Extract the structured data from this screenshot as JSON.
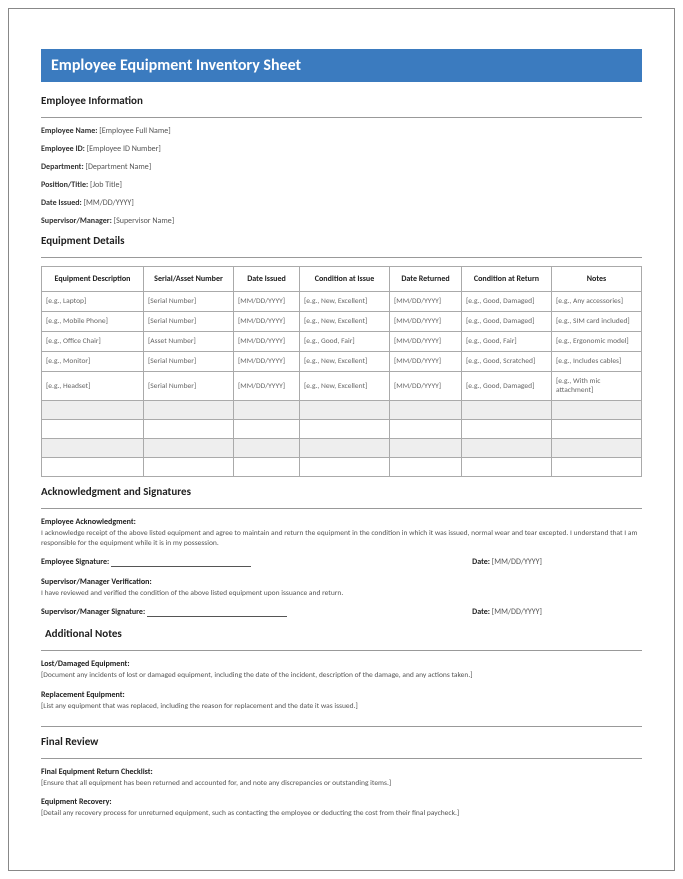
{
  "colors": {
    "banner_bg": "#3b7bbf",
    "banner_text": "#ffffff",
    "text": "#333333",
    "muted": "#666666",
    "border": "#aaaaaa",
    "zebra": "#eeeeee"
  },
  "title": "Employee Equipment Inventory Sheet",
  "sections": {
    "employee_info": {
      "heading": "Employee Information",
      "fields": [
        {
          "label": "Employee Name:",
          "value": "[Employee Full Name]"
        },
        {
          "label": "Employee ID:",
          "value": "[Employee ID Number]"
        },
        {
          "label": "Department:",
          "value": "[Department Name]"
        },
        {
          "label": "Position/Title:",
          "value": "[Job Title]"
        },
        {
          "label": "Date Issued:",
          "value": "[MM/DD/YYYY]"
        },
        {
          "label": "Supervisor/Manager:",
          "value": "[Supervisor Name]"
        }
      ]
    },
    "equipment": {
      "heading": "Equipment Details",
      "columns": [
        "Equipment Description",
        "Serial/Asset Number",
        "Date Issued",
        "Condition at Issue",
        "Date Returned",
        "Condition at Return",
        "Notes"
      ],
      "col_widths": [
        "17%",
        "15%",
        "11%",
        "15%",
        "12%",
        "15%",
        "15%"
      ],
      "rows": [
        [
          "[e.g., Laptop]",
          "[Serial Number]",
          "[MM/DD/YYYY]",
          "[e.g., New, Excellent]",
          "[MM/DD/YYYY]",
          "[e.g., Good, Damaged]",
          "[e.g., Any accessories]"
        ],
        [
          "[e.g., Mobile Phone]",
          "[Serial Number]",
          "[MM/DD/YYYY]",
          "[e.g., New, Excellent]",
          "[MM/DD/YYYY]",
          "[e.g., Good, Damaged]",
          "[e.g., SIM card included]"
        ],
        [
          "[e.g., Office Chair]",
          "[Asset Number]",
          "[MM/DD/YYYY]",
          "[e.g., Good, Fair]",
          "[MM/DD/YYYY]",
          "[e.g., Good, Fair]",
          "[e.g., Ergonomic model]"
        ],
        [
          "[e.g., Monitor]",
          "[Serial Number]",
          "[MM/DD/YYYY]",
          "[e.g., New, Excellent]",
          "[MM/DD/YYYY]",
          "[e.g., Good, Scratched]",
          "[e.g., Includes cables]"
        ],
        [
          "[e.g., Headset]",
          "[Serial Number]",
          "[MM/DD/YYYY]",
          "[e.g., New, Excellent]",
          "[MM/DD/YYYY]",
          "[e.g., Good, Damaged]",
          "[e.g., With mic attachment]"
        ],
        [
          "",
          "",
          "",
          "",
          "",
          "",
          ""
        ],
        [
          "",
          "",
          "",
          "",
          "",
          "",
          ""
        ],
        [
          "",
          "",
          "",
          "",
          "",
          "",
          ""
        ],
        [
          "",
          "",
          "",
          "",
          "",
          "",
          ""
        ]
      ],
      "zebra_rows": [
        6,
        8
      ]
    },
    "ack": {
      "heading": "Acknowledgment and Signatures",
      "emp_ack_label": "Employee Acknowledgment:",
      "emp_ack_text": "I acknowledge receipt of the above listed equipment and agree to maintain and return the equipment in the condition in which it was issued, normal wear and tear excepted. I understand that I am responsible for the equipment while it is in my possession.",
      "emp_sig_label": "Employee Signature:",
      "date_label": "Date:",
      "date_value": "[MM/DD/YYYY]",
      "sup_ver_label": "Supervisor/Manager Verification:",
      "sup_ver_text": "I have reviewed and verified the condition of the above listed equipment upon issuance and return.",
      "sup_sig_label": "Supervisor/Manager Signature:"
    },
    "notes": {
      "heading": "Additional Notes",
      "lost_label": "Lost/Damaged Equipment:",
      "lost_text": "[Document any incidents of lost or damaged equipment, including the date of the incident, description of the damage, and any actions taken.]",
      "replace_label": "Replacement Equipment:",
      "replace_text": "[List any equipment that was replaced, including the reason for replacement and the date it was issued.]"
    },
    "review": {
      "heading": "Final Review",
      "checklist_label": "Final Equipment Return Checklist:",
      "checklist_text": "[Ensure that all equipment has been returned and accounted for, and note any discrepancies or outstanding items.]",
      "recovery_label": "Equipment Recovery:",
      "recovery_text": "[Detail any recovery process for unreturned equipment, such as contacting the employee or deducting the cost from their final paycheck.]"
    }
  }
}
